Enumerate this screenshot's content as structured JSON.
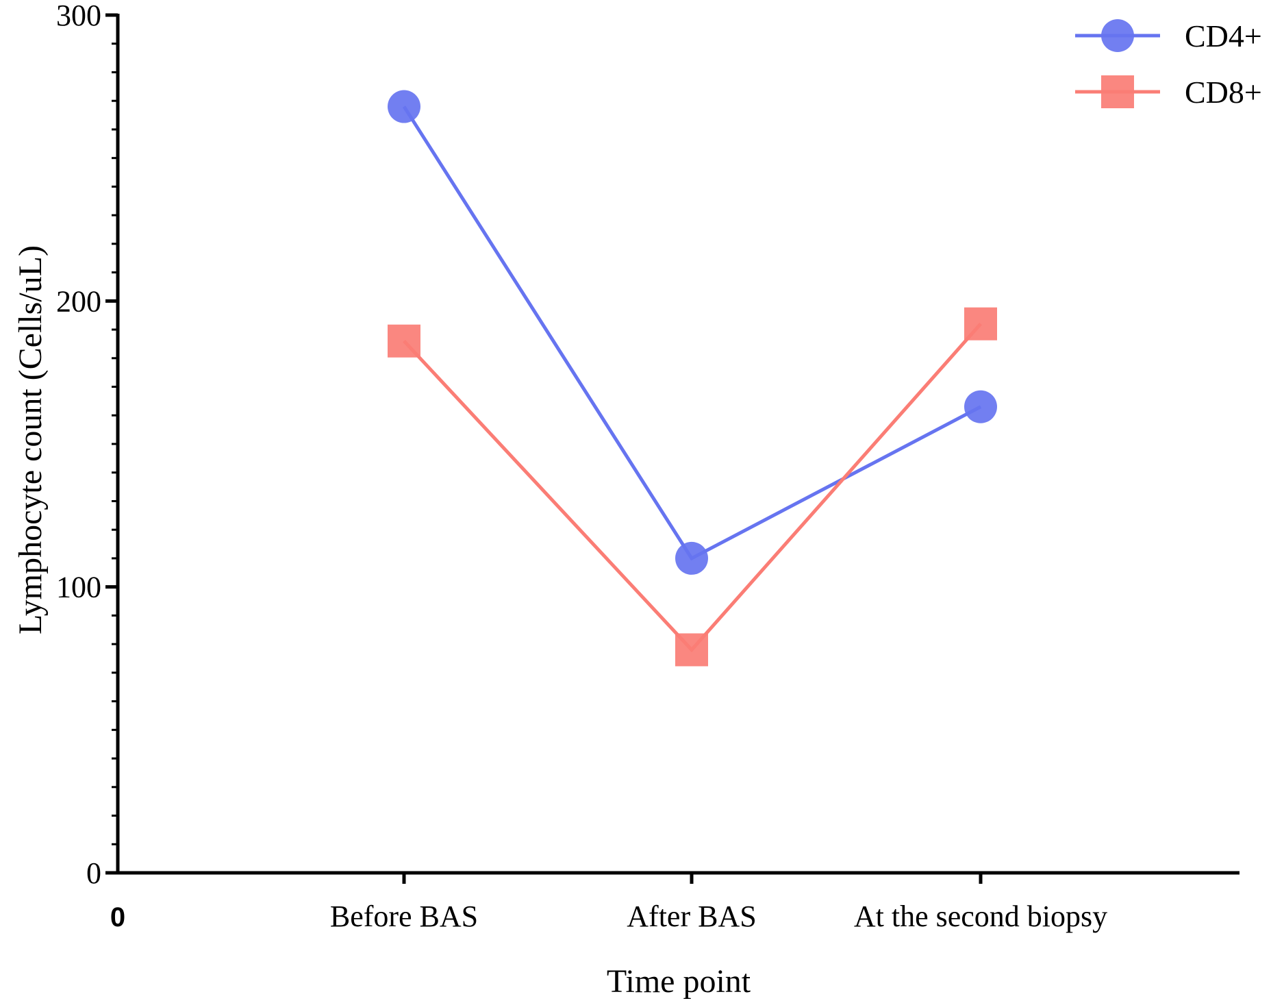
{
  "chart_data": {
    "type": "line",
    "xlabel": "Time point",
    "ylabel": "Lymphocyte count (Cells/uL)",
    "x_origin_label": "0",
    "categories": [
      "Before BAS",
      "After BAS",
      "At the second biopsy"
    ],
    "ylim": [
      0,
      300
    ],
    "y_ticks": [
      0,
      100,
      200,
      300
    ],
    "y_minor_step": 10,
    "grid": false,
    "legend_position": "top-right",
    "series": [
      {
        "name": "CD4+",
        "marker": "circle",
        "color": "#6674f0",
        "values": [
          268,
          110,
          163
        ]
      },
      {
        "name": "CD8+",
        "marker": "square",
        "color": "#fa7d75",
        "values": [
          186,
          78,
          192
        ]
      }
    ]
  }
}
